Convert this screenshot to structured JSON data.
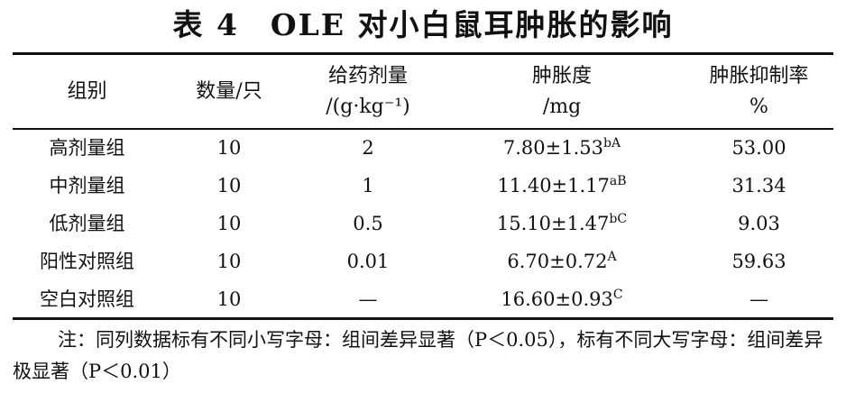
{
  "title": "表 4　OLE 对小白鼠耳肿胀的影响",
  "table": {
    "headers": [
      {
        "line1": "组别",
        "line2": ""
      },
      {
        "line1": "数量/只",
        "line2": ""
      },
      {
        "line1": "给药剂量",
        "line2": "/(g·kg⁻¹)"
      },
      {
        "line1": "肿胀度",
        "line2": "/mg"
      },
      {
        "line1": "肿胀抑制率",
        "line2": "%"
      }
    ],
    "rows": [
      {
        "group": "高剂量组",
        "count": "10",
        "dose": "2",
        "swelling": "7.80±1.53",
        "sup": "bA",
        "inhibition": "53.00"
      },
      {
        "group": "中剂量组",
        "count": "10",
        "dose": "1",
        "swelling": "11.40±1.17",
        "sup": "aB",
        "inhibition": "31.34"
      },
      {
        "group": "低剂量组",
        "count": "10",
        "dose": "0.5",
        "swelling": "15.10±1.47",
        "sup": "bC",
        "inhibition": "9.03"
      },
      {
        "group": "阳性对照组",
        "count": "10",
        "dose": "0.01",
        "swelling": "6.70±0.72",
        "sup": "A",
        "inhibition": "59.63"
      },
      {
        "group": "空白对照组",
        "count": "10",
        "dose": "—",
        "swelling": "16.60±0.93",
        "sup": "C",
        "inhibition": "—"
      }
    ]
  },
  "note": "注：同列数据标有不同小写字母：组间差异显著（P＜0.05），标有不同大写字母：组间差异极显著（P＜0.01）"
}
